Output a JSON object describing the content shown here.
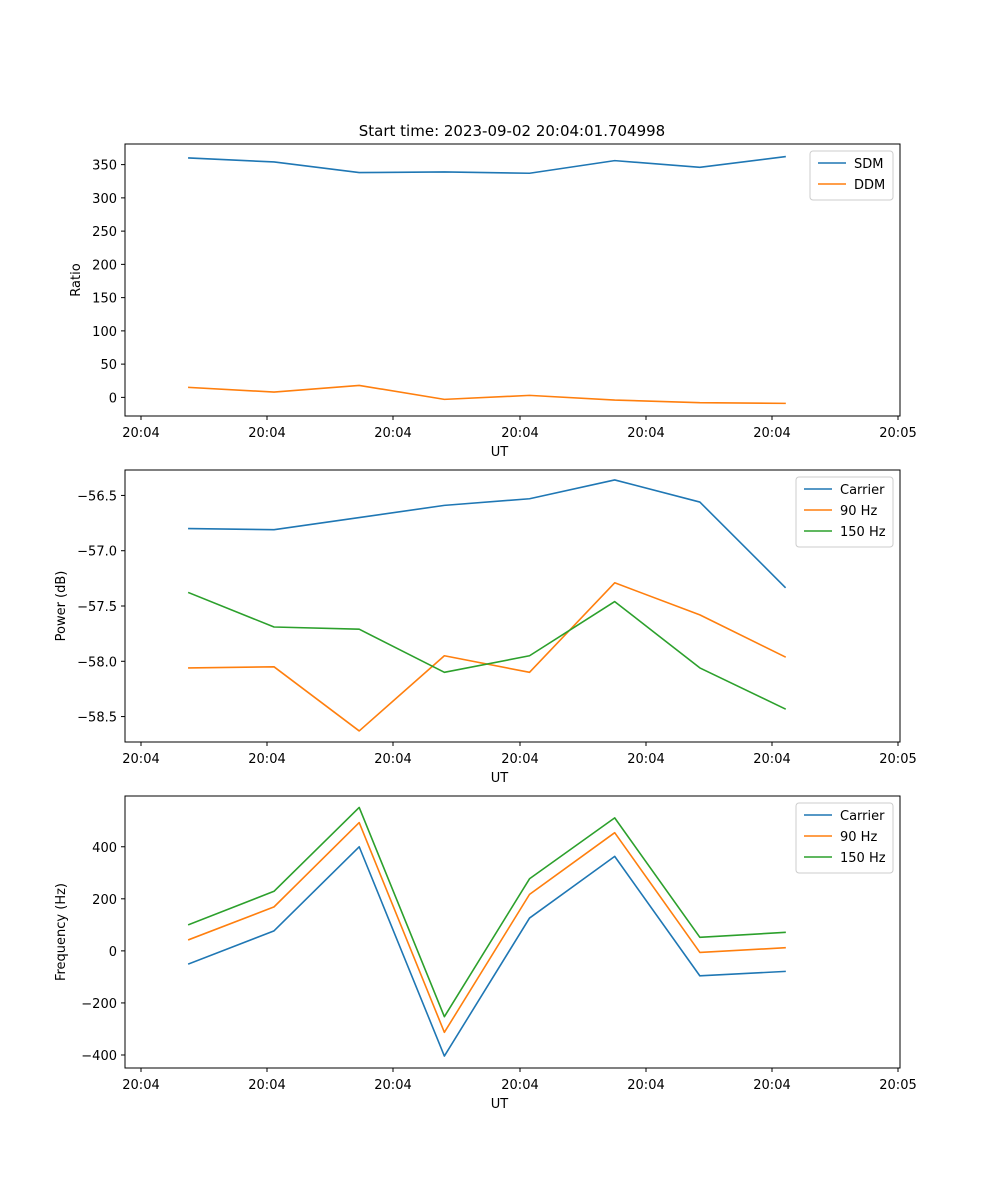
{
  "figure": {
    "title": "Start time: 2023-09-02 20:04:01.704998"
  },
  "chart_data": [
    {
      "type": "line",
      "xlabel": "UT",
      "ylabel": "Ratio",
      "x_tick_labels": [
        "20:04",
        "20:04",
        "20:04",
        "20:04",
        "20:04",
        "20:04",
        "20:05"
      ],
      "xlim": [
        -0.25,
        8.85
      ],
      "x": [
        0.5,
        1.5,
        2.5,
        3.5,
        4.5,
        5.5,
        6.5,
        7.5
      ],
      "ylim": [
        -28,
        381
      ],
      "yticks": [
        0,
        50,
        100,
        150,
        200,
        250,
        300,
        350
      ],
      "legend_position": "top-right",
      "series": [
        {
          "name": "SDM",
          "color": "#1f77b4",
          "values": [
            360,
            354,
            338,
            339,
            337,
            356,
            346,
            362
          ]
        },
        {
          "name": "DDM",
          "color": "#ff7f0e",
          "values": [
            15,
            8,
            18,
            -3,
            3,
            -4,
            -8,
            -9
          ]
        }
      ]
    },
    {
      "type": "line",
      "xlabel": "UT",
      "ylabel": "Power (dB)",
      "x_tick_labels": [
        "20:04",
        "20:04",
        "20:04",
        "20:04",
        "20:04",
        "20:04",
        "20:05"
      ],
      "xlim": [
        -0.25,
        8.85
      ],
      "x": [
        0.5,
        1.5,
        2.5,
        3.5,
        4.5,
        5.5,
        6.5,
        7.5
      ],
      "ylim": [
        -58.73,
        -56.27
      ],
      "yticks": [
        -58.5,
        -58.0,
        -57.5,
        -57.0,
        -56.5
      ],
      "ytick_labels": [
        "−58.5",
        "−58.0",
        "−57.5",
        "−57.0",
        "−56.5"
      ],
      "legend_position": "top-right",
      "series": [
        {
          "name": "Carrier",
          "color": "#1f77b4",
          "values": [
            -56.8,
            -56.81,
            -56.7,
            -56.59,
            -56.53,
            -56.36,
            -56.56,
            -57.33
          ]
        },
        {
          "name": "90 Hz",
          "color": "#ff7f0e",
          "values": [
            -58.06,
            -58.05,
            -58.63,
            -57.95,
            -58.1,
            -57.29,
            -57.58,
            -57.96
          ]
        },
        {
          "name": "150 Hz",
          "color": "#2ca02c",
          "values": [
            -57.38,
            -57.69,
            -57.71,
            -58.1,
            -57.95,
            -57.46,
            -58.06,
            -58.43
          ]
        }
      ]
    },
    {
      "type": "line",
      "xlabel": "UT",
      "ylabel": "Frequency (Hz)",
      "x_tick_labels": [
        "20:04",
        "20:04",
        "20:04",
        "20:04",
        "20:04",
        "20:04",
        "20:05"
      ],
      "xlim": [
        -0.25,
        8.85
      ],
      "x": [
        0.5,
        1.5,
        2.5,
        3.5,
        4.5,
        5.5,
        6.5,
        7.5
      ],
      "ylim": [
        -450,
        595
      ],
      "yticks": [
        -400,
        -200,
        0,
        200,
        400
      ],
      "ytick_labels": [
        "−400",
        "−200",
        "0",
        "200",
        "400"
      ],
      "legend_position": "top-right",
      "series": [
        {
          "name": "Carrier",
          "color": "#1f77b4",
          "values": [
            -50,
            77,
            400,
            -404,
            126,
            363,
            -96,
            -79
          ]
        },
        {
          "name": "90 Hz",
          "color": "#ff7f0e",
          "values": [
            43,
            169,
            493,
            -313,
            217,
            454,
            -6,
            12
          ]
        },
        {
          "name": "150 Hz",
          "color": "#2ca02c",
          "values": [
            101,
            229,
            551,
            -253,
            277,
            511,
            52,
            71
          ]
        }
      ]
    }
  ]
}
